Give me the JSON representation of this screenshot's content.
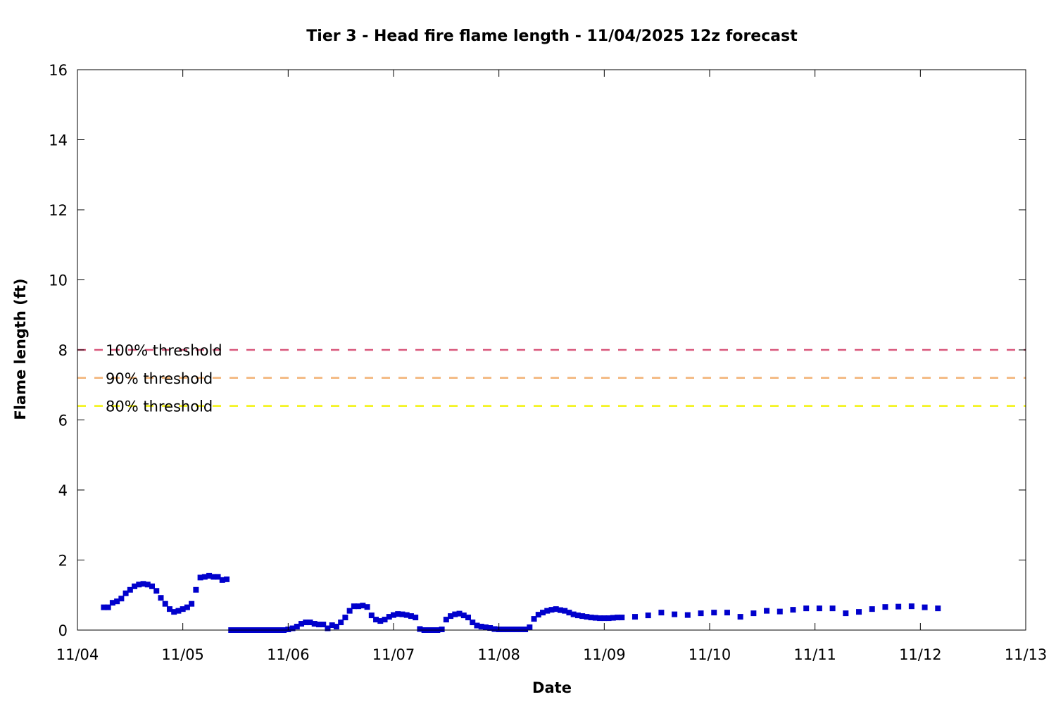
{
  "chart_data": {
    "type": "scatter",
    "title": "Tier 3 - Head fire flame length - 11/04/2025 12z forecast",
    "xlabel": "Date",
    "ylabel": "Flame length (ft)",
    "xlim": [
      "11/04 00:00",
      "11/13 00:00"
    ],
    "ylim": [
      0,
      16
    ],
    "x_tick_labels": [
      "11/04",
      "11/05",
      "11/06",
      "11/07",
      "11/08",
      "11/09",
      "11/10",
      "11/11",
      "11/12",
      "11/13"
    ],
    "y_tick_labels": [
      "0",
      "2",
      "4",
      "6",
      "8",
      "10",
      "12",
      "14",
      "16"
    ],
    "grid": false,
    "legend_position": "left",
    "thresholds": [
      {
        "name": "100% threshold",
        "value": 8.0,
        "color": "#d9587c"
      },
      {
        "name": "90% threshold",
        "value": 7.2,
        "color": "#f2b275"
      },
      {
        "name": "80% threshold",
        "value": 6.4,
        "color": "#f2f20d"
      }
    ],
    "series": [
      {
        "color": "#0000cc",
        "points": [
          [
            "11/04 06:00",
            0.65
          ],
          [
            "11/04 07:00",
            0.65
          ],
          [
            "11/04 08:00",
            0.78
          ],
          [
            "11/04 09:00",
            0.82
          ],
          [
            "11/04 10:00",
            0.9
          ],
          [
            "11/04 11:00",
            1.05
          ],
          [
            "11/04 12:00",
            1.15
          ],
          [
            "11/04 13:00",
            1.25
          ],
          [
            "11/04 14:00",
            1.3
          ],
          [
            "11/04 15:00",
            1.32
          ],
          [
            "11/04 16:00",
            1.3
          ],
          [
            "11/04 17:00",
            1.25
          ],
          [
            "11/04 18:00",
            1.12
          ],
          [
            "11/04 19:00",
            0.92
          ],
          [
            "11/04 20:00",
            0.75
          ],
          [
            "11/04 21:00",
            0.6
          ],
          [
            "11/04 22:00",
            0.52
          ],
          [
            "11/04 23:00",
            0.55
          ],
          [
            "11/05 00:00",
            0.6
          ],
          [
            "11/05 01:00",
            0.65
          ],
          [
            "11/05 02:00",
            0.75
          ],
          [
            "11/05 03:00",
            1.15
          ],
          [
            "11/05 04:00",
            1.5
          ],
          [
            "11/05 05:00",
            1.52
          ],
          [
            "11/05 06:00",
            1.55
          ],
          [
            "11/05 07:00",
            1.52
          ],
          [
            "11/05 08:00",
            1.52
          ],
          [
            "11/05 09:00",
            1.43
          ],
          [
            "11/05 10:00",
            1.45
          ],
          [
            "11/05 11:00",
            0.0
          ],
          [
            "11/05 12:00",
            0.0
          ],
          [
            "11/05 13:00",
            0.0
          ],
          [
            "11/05 14:00",
            0.0
          ],
          [
            "11/05 15:00",
            0.0
          ],
          [
            "11/05 16:00",
            0.0
          ],
          [
            "11/05 17:00",
            0.0
          ],
          [
            "11/05 18:00",
            0.0
          ],
          [
            "11/05 19:00",
            0.0
          ],
          [
            "11/05 20:00",
            0.0
          ],
          [
            "11/05 21:00",
            0.0
          ],
          [
            "11/05 22:00",
            0.0
          ],
          [
            "11/05 23:00",
            0.0
          ],
          [
            "11/06 00:00",
            0.02
          ],
          [
            "11/06 01:00",
            0.05
          ],
          [
            "11/06 02:00",
            0.1
          ],
          [
            "11/06 03:00",
            0.18
          ],
          [
            "11/06 04:00",
            0.22
          ],
          [
            "11/06 05:00",
            0.22
          ],
          [
            "11/06 06:00",
            0.18
          ],
          [
            "11/06 07:00",
            0.16
          ],
          [
            "11/06 08:00",
            0.16
          ],
          [
            "11/06 09:00",
            0.05
          ],
          [
            "11/06 10:00",
            0.14
          ],
          [
            "11/06 11:00",
            0.1
          ],
          [
            "11/06 12:00",
            0.22
          ],
          [
            "11/06 13:00",
            0.36
          ],
          [
            "11/06 14:00",
            0.55
          ],
          [
            "11/06 15:00",
            0.68
          ],
          [
            "11/06 16:00",
            0.68
          ],
          [
            "11/06 17:00",
            0.7
          ],
          [
            "11/06 18:00",
            0.66
          ],
          [
            "11/06 19:00",
            0.42
          ],
          [
            "11/06 20:00",
            0.3
          ],
          [
            "11/06 21:00",
            0.26
          ],
          [
            "11/06 22:00",
            0.3
          ],
          [
            "11/06 23:00",
            0.38
          ],
          [
            "11/07 00:00",
            0.43
          ],
          [
            "11/07 01:00",
            0.46
          ],
          [
            "11/07 02:00",
            0.45
          ],
          [
            "11/07 03:00",
            0.43
          ],
          [
            "11/07 04:00",
            0.4
          ],
          [
            "11/07 05:00",
            0.36
          ],
          [
            "11/07 06:00",
            0.03
          ],
          [
            "11/07 07:00",
            0.0
          ],
          [
            "11/07 08:00",
            0.0
          ],
          [
            "11/07 09:00",
            0.0
          ],
          [
            "11/07 10:00",
            0.0
          ],
          [
            "11/07 11:00",
            0.02
          ],
          [
            "11/07 12:00",
            0.3
          ],
          [
            "11/07 13:00",
            0.4
          ],
          [
            "11/07 14:00",
            0.45
          ],
          [
            "11/07 15:00",
            0.47
          ],
          [
            "11/07 16:00",
            0.42
          ],
          [
            "11/07 17:00",
            0.36
          ],
          [
            "11/07 18:00",
            0.22
          ],
          [
            "11/07 19:00",
            0.13
          ],
          [
            "11/07 20:00",
            0.1
          ],
          [
            "11/07 21:00",
            0.08
          ],
          [
            "11/07 22:00",
            0.06
          ],
          [
            "11/07 23:00",
            0.03
          ],
          [
            "11/08 00:00",
            0.02
          ],
          [
            "11/08 01:00",
            0.02
          ],
          [
            "11/08 02:00",
            0.02
          ],
          [
            "11/08 03:00",
            0.02
          ],
          [
            "11/08 04:00",
            0.02
          ],
          [
            "11/08 05:00",
            0.02
          ],
          [
            "11/08 06:00",
            0.02
          ],
          [
            "11/08 07:00",
            0.08
          ],
          [
            "11/08 08:00",
            0.32
          ],
          [
            "11/08 09:00",
            0.44
          ],
          [
            "11/08 10:00",
            0.5
          ],
          [
            "11/08 11:00",
            0.55
          ],
          [
            "11/08 12:00",
            0.58
          ],
          [
            "11/08 13:00",
            0.6
          ],
          [
            "11/08 14:00",
            0.57
          ],
          [
            "11/08 15:00",
            0.55
          ],
          [
            "11/08 16:00",
            0.5
          ],
          [
            "11/08 17:00",
            0.45
          ],
          [
            "11/08 18:00",
            0.42
          ],
          [
            "11/08 19:00",
            0.4
          ],
          [
            "11/08 20:00",
            0.38
          ],
          [
            "11/08 21:00",
            0.36
          ],
          [
            "11/08 22:00",
            0.35
          ],
          [
            "11/08 23:00",
            0.34
          ],
          [
            "11/09 00:00",
            0.34
          ],
          [
            "11/09 01:00",
            0.34
          ],
          [
            "11/09 02:00",
            0.35
          ],
          [
            "11/09 03:00",
            0.36
          ],
          [
            "11/09 04:00",
            0.36
          ],
          [
            "11/09 07:00",
            0.38
          ],
          [
            "11/09 10:00",
            0.42
          ],
          [
            "11/09 13:00",
            0.5
          ],
          [
            "11/09 16:00",
            0.45
          ],
          [
            "11/09 19:00",
            0.43
          ],
          [
            "11/09 22:00",
            0.48
          ],
          [
            "11/10 01:00",
            0.5
          ],
          [
            "11/10 04:00",
            0.5
          ],
          [
            "11/10 07:00",
            0.38
          ],
          [
            "11/10 10:00",
            0.48
          ],
          [
            "11/10 13:00",
            0.55
          ],
          [
            "11/10 16:00",
            0.53
          ],
          [
            "11/10 19:00",
            0.58
          ],
          [
            "11/10 22:00",
            0.62
          ],
          [
            "11/11 01:00",
            0.62
          ],
          [
            "11/11 04:00",
            0.62
          ],
          [
            "11/11 07:00",
            0.48
          ],
          [
            "11/11 10:00",
            0.52
          ],
          [
            "11/11 13:00",
            0.6
          ],
          [
            "11/11 16:00",
            0.66
          ],
          [
            "11/11 19:00",
            0.67
          ],
          [
            "11/11 22:00",
            0.68
          ],
          [
            "11/12 01:00",
            0.65
          ],
          [
            "11/12 04:00",
            0.62
          ]
        ]
      }
    ]
  }
}
